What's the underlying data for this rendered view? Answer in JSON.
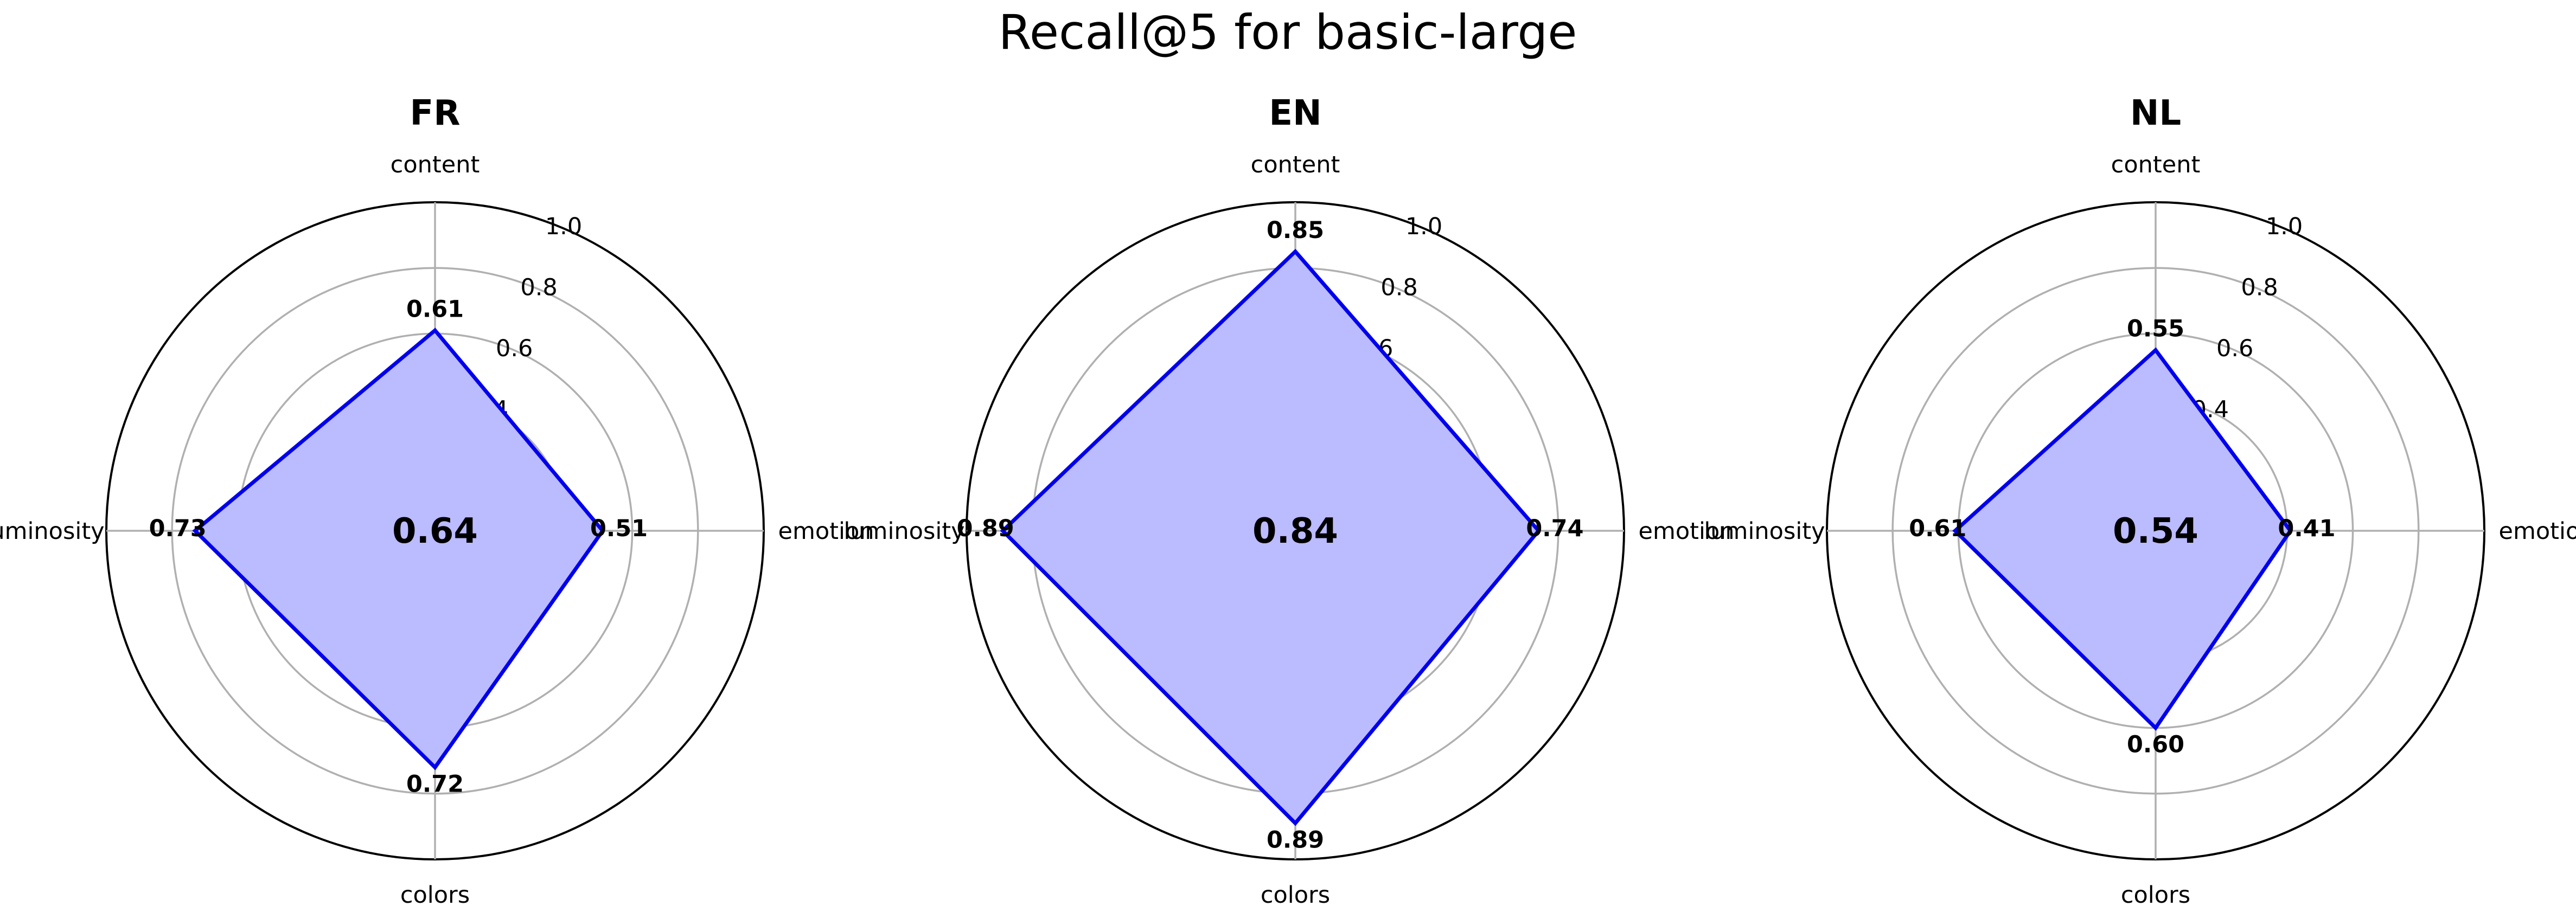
{
  "chart_data": {
    "type": "radar",
    "title": "Recall@5 for basic-large",
    "axes": [
      "content",
      "emotion",
      "colors",
      "luminosity"
    ],
    "rlim": [
      0,
      1.0
    ],
    "rticks": [
      0.2,
      0.4,
      0.6,
      0.8,
      1.0
    ],
    "rtick_labels": [
      "0.2",
      "0.4",
      "0.6",
      "0.8",
      "1.0"
    ],
    "grid": true,
    "series_color": "#0000ee",
    "fill_color": "#bbbbff",
    "panels": [
      {
        "title": "FR",
        "values": [
          0.61,
          0.51,
          0.72,
          0.73
        ],
        "value_labels": [
          "0.61",
          "0.51",
          "0.72",
          "0.73"
        ],
        "center_value": "0.64"
      },
      {
        "title": "EN",
        "values": [
          0.85,
          0.74,
          0.89,
          0.89
        ],
        "value_labels": [
          "0.85",
          "0.74",
          "0.89",
          "0.89"
        ],
        "center_value": "0.84"
      },
      {
        "title": "NL",
        "values": [
          0.55,
          0.41,
          0.6,
          0.61
        ],
        "value_labels": [
          "0.55",
          "0.41",
          "0.60",
          "0.61"
        ],
        "center_value": "0.54"
      }
    ]
  }
}
